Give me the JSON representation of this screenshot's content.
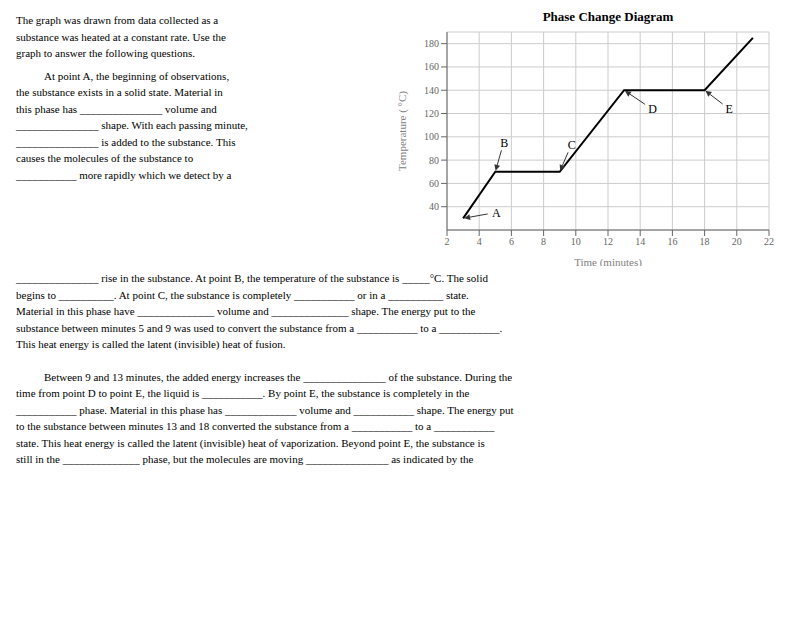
{
  "chart_data": {
    "type": "line",
    "title": "Phase Change Diagram",
    "xlabel": "Time (minutes)",
    "ylabel": "Temperature ( °C)",
    "x": [
      3,
      5,
      9,
      13,
      18,
      21
    ],
    "values": [
      30,
      70,
      70,
      140,
      140,
      185
    ],
    "color": "#000000",
    "xlim": [
      2,
      22
    ],
    "ylim": [
      20,
      190
    ],
    "xticks": [
      2,
      4,
      6,
      8,
      10,
      12,
      14,
      16,
      18,
      20,
      22
    ],
    "yticks": [
      40,
      60,
      80,
      100,
      120,
      140,
      160,
      180
    ],
    "grid": true,
    "annotations": [
      {
        "text": "A",
        "x": 3,
        "y": 30,
        "text_x": 4.8,
        "text_y": 35
      },
      {
        "text": "B",
        "x": 5,
        "y": 70,
        "text_x": 5.3,
        "text_y": 95
      },
      {
        "text": "C",
        "x": 9,
        "y": 70,
        "text_x": 9.5,
        "text_y": 93
      },
      {
        "text": "D",
        "x": 13,
        "y": 140,
        "text_x": 14.5,
        "text_y": 124
      },
      {
        "text": "E",
        "x": 18,
        "y": 140,
        "text_x": 19.3,
        "text_y": 124
      }
    ]
  },
  "paragraphs": [
    [
      "The graph was drawn from data collected as a",
      "substance was heated at a constant rate. Use the",
      "graph to answer the following questions."
    ],
    [
      "At point A, the beginning of observations,",
      "the substance exists in a solid state. Material in",
      "this phase has _______________ volume and",
      "_______________ shape. With each passing minute,",
      "_______________ is added to the substance. This",
      "causes the molecules of the substance to",
      "___________ more rapidly which we detect by a"
    ],
    [
      "_______________ rise in the substance. At point B, the temperature of the substance is _____°C. The solid",
      "begins to __________. At point C, the substance is completely ___________ or in a __________ state.",
      "Material in this phase have ______________ volume and ______________ shape. The energy put to the",
      "substance between minutes 5 and 9 was used to convert the substance from a ___________ to a ___________.",
      "This heat energy is called the latent (invisible) heat of fusion."
    ],
    [
      "Between 9 and 13 minutes, the added energy increases the _______________ of the substance. During the",
      "time from point D to point E, the liquid is ___________. By point E, the substance is completely in the",
      "___________ phase. Material in this phase has _____________ volume and ___________ shape. The energy put",
      "to the substance between minutes 13 and 18 converted the substance from a ___________ to a ___________",
      "state. This heat energy is called the latent (invisible) heat of vaporization. Beyond point E, the substance is",
      "still in the ______________ phase, but the molecules are moving _______________ as indicated by the"
    ]
  ]
}
